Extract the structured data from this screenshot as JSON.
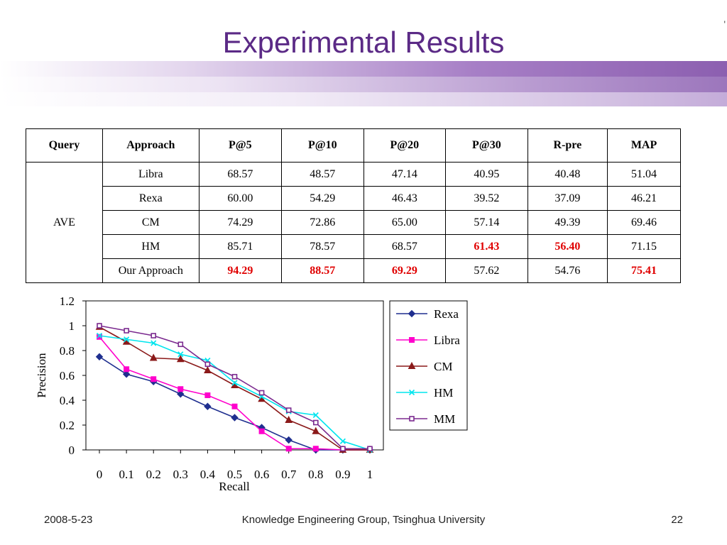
{
  "slide": {
    "title": "Experimental Results",
    "corner_mark": "'"
  },
  "table": {
    "headers": [
      "Query",
      "Approach",
      "P@5",
      "P@10",
      "P@20",
      "P@30",
      "R-pre",
      "MAP"
    ],
    "query_label": "AVE",
    "rows": [
      {
        "approach": "Libra",
        "values": [
          "68.57",
          "48.57",
          "47.14",
          "40.95",
          "40.48",
          "51.04"
        ],
        "highlight": [
          false,
          false,
          false,
          false,
          false,
          false
        ]
      },
      {
        "approach": "Rexa",
        "values": [
          "60.00",
          "54.29",
          "46.43",
          "39.52",
          "37.09",
          "46.21"
        ],
        "highlight": [
          false,
          false,
          false,
          false,
          false,
          false
        ]
      },
      {
        "approach": "CM",
        "values": [
          "74.29",
          "72.86",
          "65.00",
          "57.14",
          "49.39",
          "69.46"
        ],
        "highlight": [
          false,
          false,
          false,
          false,
          false,
          false
        ]
      },
      {
        "approach": "HM",
        "values": [
          "85.71",
          "78.57",
          "68.57",
          "61.43",
          "56.40",
          "71.15"
        ],
        "highlight": [
          false,
          false,
          false,
          true,
          true,
          false
        ]
      },
      {
        "approach": "Our Approach",
        "values": [
          "94.29",
          "88.57",
          "69.29",
          "57.62",
          "54.76",
          "75.41"
        ],
        "highlight": [
          true,
          true,
          true,
          false,
          false,
          true
        ]
      }
    ],
    "highlight_color": "#e00000"
  },
  "chart_data": {
    "type": "line",
    "xlabel": "Recall",
    "ylabel": "Precision",
    "x": [
      0,
      0.1,
      0.2,
      0.3,
      0.4,
      0.5,
      0.6,
      0.7,
      0.8,
      0.9,
      1
    ],
    "x_tick_labels": [
      "0",
      "0.1",
      "0.2",
      "0.3",
      "0.4",
      "0.5",
      "0.6",
      "0.7",
      "0.8",
      "0.9",
      "1"
    ],
    "ylim": [
      0,
      1.2
    ],
    "y_ticks": [
      0,
      0.2,
      0.4,
      0.6,
      0.8,
      1,
      1.2
    ],
    "y_tick_labels": [
      "0",
      "0.2",
      "0.4",
      "0.6",
      "0.8",
      "1",
      "1.2"
    ],
    "grid": false,
    "legend": "right",
    "series": [
      {
        "name": "Rexa",
        "color": "#1f2f8f",
        "marker": "diamond",
        "values": [
          0.75,
          0.61,
          0.55,
          0.45,
          0.35,
          0.26,
          0.18,
          0.08,
          0.0,
          0.0,
          0.0
        ]
      },
      {
        "name": "Libra",
        "color": "#ff00cc",
        "marker": "square",
        "values": [
          0.91,
          0.65,
          0.57,
          0.49,
          0.44,
          0.35,
          0.15,
          0.01,
          0.01,
          0.0,
          0.0
        ]
      },
      {
        "name": "CM",
        "color": "#8b1a1a",
        "marker": "triangle",
        "values": [
          0.99,
          0.87,
          0.74,
          0.73,
          0.64,
          0.52,
          0.41,
          0.24,
          0.15,
          0.0,
          0.0
        ]
      },
      {
        "name": "HM",
        "color": "#00e5ee",
        "marker": "x",
        "values": [
          0.92,
          0.89,
          0.86,
          0.77,
          0.72,
          0.54,
          0.43,
          0.31,
          0.28,
          0.07,
          0.0
        ]
      },
      {
        "name": "MM",
        "color": "#7b2a8f",
        "marker": "circle",
        "values": [
          1.0,
          0.96,
          0.92,
          0.85,
          0.69,
          0.59,
          0.46,
          0.32,
          0.22,
          0.01,
          0.01
        ]
      }
    ]
  },
  "footer": {
    "date": "2008-5-23",
    "organization": "Knowledge Engineering Group, Tsinghua University",
    "page_number": "22"
  }
}
